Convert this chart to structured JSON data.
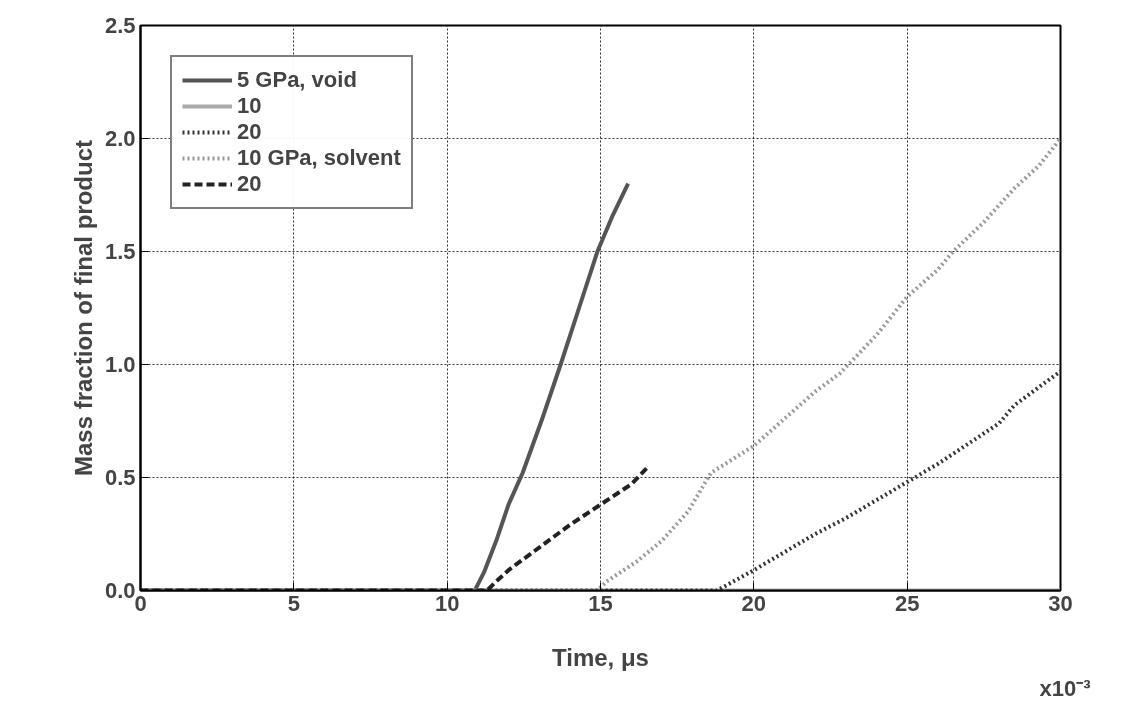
{
  "chart_data": {
    "type": "line",
    "xlabel": "Time, μs",
    "ylabel": "Mass fraction of final product",
    "xlim": [
      0,
      30
    ],
    "ylim": [
      0,
      2.5
    ],
    "xticks": [
      0,
      5,
      10,
      15,
      20,
      25,
      30
    ],
    "annotations": [
      "x10⁻³"
    ],
    "yticks": [
      {
        "value": 0,
        "label": "0.0"
      },
      {
        "value": 0.5,
        "label": "0.5"
      },
      {
        "value": 1,
        "label": "1.0"
      },
      {
        "value": 1.5,
        "label": "1.5"
      },
      {
        "value": 2,
        "label": "2.0"
      },
      {
        "value": 2.5,
        "label": "2.5"
      }
    ],
    "grid": true,
    "legend": "top left",
    "series": [
      {
        "name": "5 GPa, void",
        "color": "#555555",
        "line_style": "solid",
        "x": [
          0,
          10.9,
          11.2,
          11.6,
          12.0,
          12.46,
          13.1,
          13.7,
          14.3,
          14.9,
          15.4,
          15.9
        ],
        "values": [
          0,
          0,
          0.08,
          0.22,
          0.38,
          0.52,
          0.76,
          1.0,
          1.25,
          1.5,
          1.66,
          1.8
        ]
      },
      {
        "name": "10",
        "color": "#aaaaaa",
        "line_style": "solid",
        "x": [
          0,
          30
        ],
        "values": [
          0,
          0
        ]
      },
      {
        "name": "20",
        "color": "#333333",
        "line_style": "dotted",
        "x": [
          0,
          18.8,
          20,
          21,
          22,
          23,
          24,
          25,
          26,
          27,
          28,
          28.5,
          29,
          30
        ],
        "values": [
          0,
          0,
          0.09,
          0.17,
          0.25,
          0.32,
          0.4,
          0.48,
          0.56,
          0.65,
          0.74,
          0.82,
          0.87,
          0.97
        ]
      },
      {
        "name": "10 GPa, solvent",
        "color": "#999999",
        "line_style": "dotted",
        "x": [
          0,
          14.9,
          15.2,
          16.2,
          17,
          17.86,
          18.6,
          20,
          21,
          22,
          22.8,
          24,
          25,
          26,
          26.5,
          27.5,
          28.5,
          29.3,
          30
        ],
        "values": [
          0,
          0,
          0.04,
          0.13,
          0.22,
          0.35,
          0.52,
          0.64,
          0.76,
          0.88,
          0.96,
          1.13,
          1.3,
          1.42,
          1.5,
          1.63,
          1.78,
          1.88,
          2.0
        ]
      },
      {
        "name": "20",
        "color": "#222222",
        "line_style": "dashed",
        "x": [
          0,
          11.3,
          11.6,
          12,
          13,
          14,
          15,
          16,
          16.5
        ],
        "values": [
          0,
          0,
          0.04,
          0.09,
          0.19,
          0.29,
          0.38,
          0.47,
          0.54
        ]
      }
    ]
  }
}
